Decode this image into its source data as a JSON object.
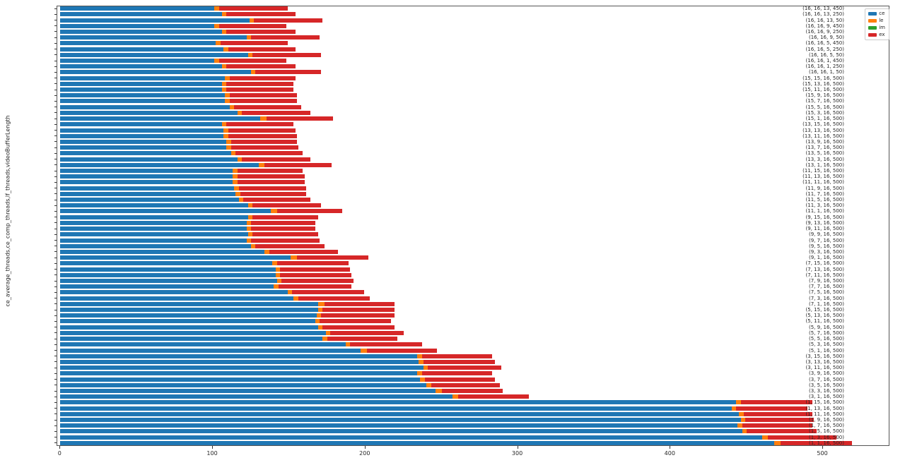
{
  "figure": {
    "background": "#ffffff",
    "spine_color": "#555555",
    "text_color": "#262626"
  },
  "chart_data": {
    "type": "bar",
    "stacked": true,
    "orientation": "horizontal",
    "title": "",
    "xlabel": "",
    "ylabel": "ce_average_threads,ce_comp_threads,lf_threads,videoBufferLength",
    "grid": false,
    "legend_position": "upper right",
    "xticks": [
      0,
      100,
      200,
      300,
      400,
      500
    ],
    "xlim": [
      -2,
      544
    ],
    "categories": [
      "(16, 16, 13, 450)",
      "(16, 16, 13, 250)",
      "(16, 16, 13, 50)",
      "(16, 16, 9, 450)",
      "(16, 16, 9, 250)",
      "(16, 16, 9, 50)",
      "(16, 16, 5, 450)",
      "(16, 16, 5, 250)",
      "(16, 16, 5, 50)",
      "(16, 16, 1, 450)",
      "(16, 16, 1, 250)",
      "(16, 16, 1, 50)",
      "(15, 15, 16, 500)",
      "(15, 13, 16, 500)",
      "(15, 11, 16, 500)",
      "(15, 9, 16, 500)",
      "(15, 7, 16, 500)",
      "(15, 5, 16, 500)",
      "(15, 3, 16, 500)",
      "(15, 1, 16, 500)",
      "(13, 15, 16, 500)",
      "(13, 13, 16, 500)",
      "(13, 11, 16, 500)",
      "(13, 9, 16, 500)",
      "(13, 7, 16, 500)",
      "(13, 5, 16, 500)",
      "(13, 3, 16, 500)",
      "(13, 1, 16, 500)",
      "(11, 15, 16, 500)",
      "(11, 13, 16, 500)",
      "(11, 11, 16, 500)",
      "(11, 9, 16, 500)",
      "(11, 7, 16, 500)",
      "(11, 5, 16, 500)",
      "(11, 3, 16, 500)",
      "(11, 1, 16, 500)",
      "(9, 15, 16, 500)",
      "(9, 13, 16, 500)",
      "(9, 11, 16, 500)",
      "(9, 9, 16, 500)",
      "(9, 7, 16, 500)",
      "(9, 5, 16, 500)",
      "(9, 3, 16, 500)",
      "(9, 1, 16, 500)",
      "(7, 15, 16, 500)",
      "(7, 13, 16, 500)",
      "(7, 11, 16, 500)",
      "(7, 9, 16, 500)",
      "(7, 7, 16, 500)",
      "(7, 5, 16, 500)",
      "(7, 3, 16, 500)",
      "(7, 1, 16, 500)",
      "(5, 15, 16, 500)",
      "(5, 13, 16, 500)",
      "(5, 11, 16, 500)",
      "(5, 9, 16, 500)",
      "(5, 7, 16, 500)",
      "(5, 5, 16, 500)",
      "(5, 3, 16, 500)",
      "(5, 1, 16, 500)",
      "(3, 15, 16, 500)",
      "(3, 13, 16, 500)",
      "(3, 11, 16, 500)",
      "(3, 9, 16, 500)",
      "(3, 7, 16, 500)",
      "(3, 5, 16, 500)",
      "(3, 3, 16, 500)",
      "(3, 1, 16, 500)",
      "(1, 15, 16, 500)",
      "(1, 13, 16, 500)",
      "(1, 11, 16, 500)",
      "(1, 9, 16, 500)",
      "(1, 7, 16, 500)",
      "(1, 5, 16, 500)",
      "(1, 3, 16, 500)",
      "(1, 1, 16, 500)"
    ],
    "series": [
      {
        "name": "ce",
        "color": "#1f77b4",
        "values": [
          101,
          106,
          124,
          101,
          106,
          122,
          102,
          107,
          123,
          101,
          106,
          125,
          108,
          106,
          106,
          108,
          108,
          111,
          116,
          131,
          106,
          107,
          107,
          109,
          109,
          112,
          116,
          130,
          113,
          113,
          113,
          114,
          115,
          117,
          123,
          138,
          123,
          122,
          122,
          123,
          122,
          125,
          134,
          151,
          139,
          141,
          141,
          142,
          140,
          149,
          153,
          169,
          169,
          168,
          167,
          169,
          174,
          172,
          187,
          197,
          234,
          235,
          238,
          234,
          236,
          240,
          246,
          257,
          443,
          440,
          445,
          446,
          444,
          447,
          460,
          468
        ]
      },
      {
        "name": "le",
        "color": "#ff7f0e",
        "values": [
          3,
          3,
          3,
          3,
          3,
          3,
          3,
          3,
          3,
          3,
          3,
          3,
          3,
          3,
          3,
          3,
          3,
          3,
          3,
          4,
          3,
          3,
          3,
          3,
          3,
          3,
          3,
          4,
          3,
          3,
          3,
          3,
          3,
          3,
          3,
          4,
          3,
          3,
          3,
          3,
          3,
          3,
          3,
          4,
          3,
          3,
          3,
          3,
          3,
          3,
          3,
          4,
          3,
          3,
          3,
          3,
          3,
          3,
          3,
          4,
          3,
          3,
          3,
          3,
          3,
          3,
          4,
          4,
          3,
          3,
          3,
          3,
          3,
          3,
          4,
          4
        ]
      },
      {
        "name": "im",
        "color": "#2ca02c",
        "values": [
          0,
          0,
          0,
          0,
          0,
          0,
          0,
          0,
          0,
          0,
          0,
          0,
          0,
          0,
          0,
          0,
          0,
          0,
          0,
          0,
          0,
          0,
          0,
          0,
          0,
          0,
          0,
          0,
          0,
          0,
          0,
          0,
          0,
          0,
          0,
          0,
          0,
          0,
          0,
          0,
          0,
          0,
          0,
          0,
          0,
          0,
          0,
          0,
          0,
          0,
          0,
          0,
          0,
          0,
          0,
          0,
          0,
          0,
          0,
          0,
          0,
          0,
          0,
          0,
          0,
          0,
          0,
          0,
          0,
          0,
          0,
          0,
          0,
          0,
          0,
          0
        ]
      },
      {
        "name": "ex",
        "color": "#d62728",
        "values": [
          45,
          45,
          45,
          44,
          45,
          45,
          44,
          44,
          45,
          44,
          45,
          43,
          43,
          44,
          44,
          44,
          44,
          44,
          45,
          44,
          44,
          44,
          45,
          43,
          44,
          44,
          45,
          44,
          43,
          44,
          44,
          44,
          43,
          44,
          45,
          43,
          43,
          42,
          42,
          43,
          45,
          45,
          45,
          47,
          47,
          46,
          47,
          47,
          48,
          47,
          47,
          46,
          47,
          48,
          47,
          47,
          48,
          46,
          47,
          46,
          46,
          47,
          48,
          46,
          46,
          45,
          40,
          46,
          47,
          47,
          45,
          45,
          46,
          46,
          45,
          47
        ]
      }
    ]
  }
}
